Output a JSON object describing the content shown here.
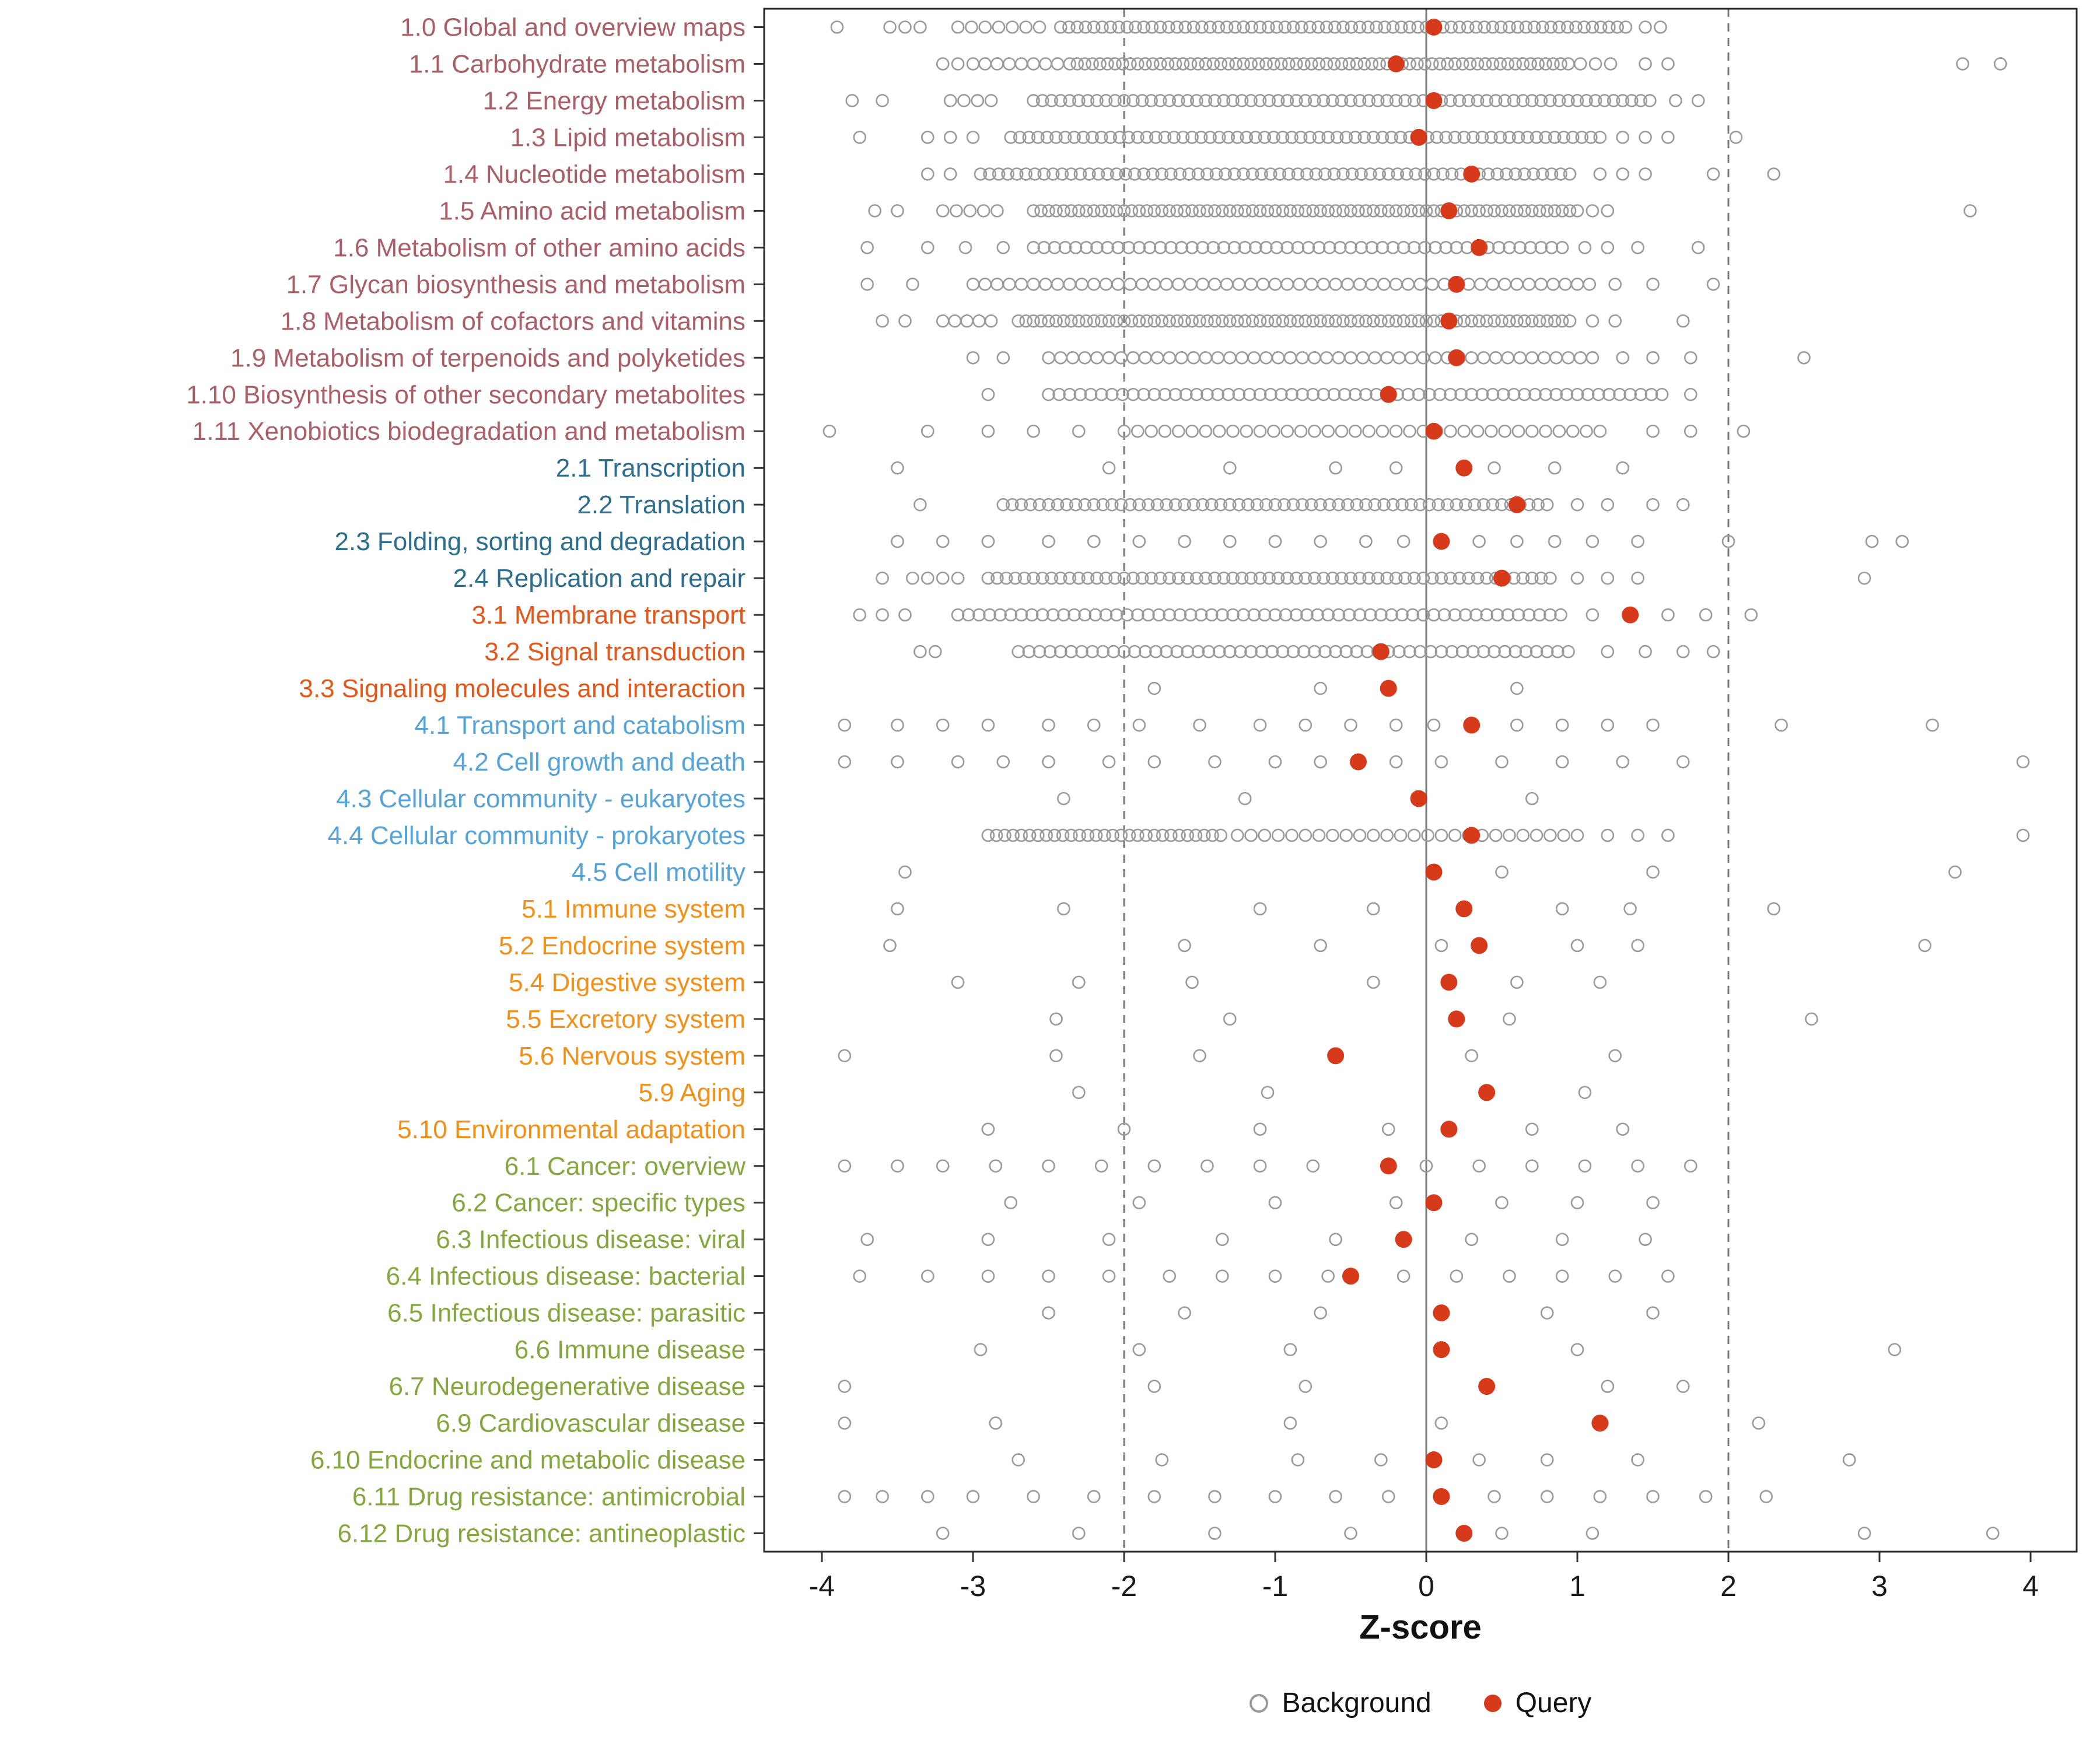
{
  "chart_data": {
    "type": "scatter",
    "subtype": "strip-dot-plot",
    "title": "",
    "xlabel": "Z-score",
    "ylabel": "",
    "x_ticks": [
      -4,
      -3,
      -2,
      -1,
      0,
      1,
      2,
      3,
      4
    ],
    "xlim": [
      -4.38,
      4.3
    ],
    "ref_lines_dashed": [
      -2,
      2
    ],
    "ref_line_solid": 0,
    "grid": false,
    "legend_position": "bottom",
    "series_names": [
      "Background",
      "Query"
    ],
    "background_run_format": "entries that are [from,to,step] arrays expand to an inclusive range of points",
    "group_colors": {
      "1": "#AA5F66",
      "2": "#2D6E8E",
      "3": "#E4571B",
      "4": "#55A3D8",
      "5": "#F39019",
      "6": "#84A83F"
    },
    "categories": [
      {
        "label": "1.0 Global and overview maps",
        "group": "1",
        "query": 0.05,
        "background": [
          -3.9,
          -3.55,
          -3.45,
          -3.35,
          [
            -3.1,
            -2.5,
            0.09
          ],
          [
            -2.42,
            1.36,
            0.055
          ],
          1.45,
          1.55
        ]
      },
      {
        "label": "1.1 Carbohydrate metabolism",
        "group": "1",
        "query": -0.2,
        "background": [
          -3.2,
          -3.1,
          [
            -3.0,
            -2.42,
            0.08
          ],
          [
            -2.36,
            0.96,
            0.05
          ],
          [
            1.02,
            1.22,
            0.1
          ],
          1.45,
          1.6,
          3.55,
          3.8
        ]
      },
      {
        "label": "1.2 Energy metabolism",
        "group": "1",
        "query": 0.05,
        "background": [
          -3.8,
          -3.6,
          [
            -3.15,
            -2.8,
            0.09
          ],
          [
            -2.6,
            1.5,
            0.06
          ],
          1.65,
          1.8
        ]
      },
      {
        "label": "1.3 Lipid metabolism",
        "group": "1",
        "query": -0.05,
        "background": [
          -3.75,
          -3.3,
          -3.15,
          -3.0,
          [
            -2.75,
            1.15,
            0.06
          ],
          1.3,
          1.45,
          1.6,
          2.05
        ]
      },
      {
        "label": "1.4 Nucleotide metabolism",
        "group": "1",
        "query": 0.3,
        "background": [
          -3.3,
          -3.15,
          [
            -2.95,
            1.0,
            0.06
          ],
          1.15,
          1.3,
          1.45,
          1.9,
          2.3
        ]
      },
      {
        "label": "1.5 Amino acid metabolism",
        "group": "1",
        "query": 0.15,
        "background": [
          -3.65,
          -3.5,
          [
            -3.2,
            -2.76,
            0.09
          ],
          [
            -2.6,
            1.0,
            0.05
          ],
          1.1,
          1.2,
          3.6
        ]
      },
      {
        "label": "1.6 Metabolism of other amino acids",
        "group": "1",
        "query": 0.35,
        "background": [
          -3.7,
          -3.3,
          -3.05,
          -2.8,
          [
            -2.6,
            0.9,
            0.07
          ],
          1.05,
          1.2,
          1.4,
          1.8
        ]
      },
      {
        "label": "1.7 Glycan biosynthesis and metabolism",
        "group": "1",
        "query": 0.2,
        "background": [
          -3.7,
          -3.4,
          [
            -3.0,
            1.1,
            0.08
          ],
          1.25,
          1.5,
          1.9
        ]
      },
      {
        "label": "1.8 Metabolism of cofactors and vitamins",
        "group": "1",
        "query": 0.15,
        "background": [
          -3.6,
          -3.45,
          [
            -3.2,
            -2.84,
            0.08
          ],
          [
            -2.7,
            0.95,
            0.05
          ],
          1.1,
          1.25,
          1.7
        ]
      },
      {
        "label": "1.9 Metabolism of terpenoids and polyketides",
        "group": "1",
        "query": 0.2,
        "background": [
          -3.0,
          -2.8,
          [
            -2.5,
            1.1,
            0.08
          ],
          1.3,
          1.5,
          1.75,
          2.5
        ]
      },
      {
        "label": "1.10 Biosynthesis of other secondary metabolites",
        "group": "1",
        "query": -0.25,
        "background": [
          -2.9,
          [
            -2.5,
            1.6,
            0.07
          ],
          1.75
        ]
      },
      {
        "label": "1.11 Xenobiotics biodegradation and metabolism",
        "group": "1",
        "query": 0.05,
        "background": [
          -3.95,
          -3.3,
          -2.9,
          -2.6,
          -2.3,
          [
            -2.0,
            1.2,
            0.09
          ],
          1.5,
          1.75,
          2.1
        ]
      },
      {
        "label": "2.1 Transcription",
        "group": "2",
        "query": 0.25,
        "background": [
          -3.5,
          -2.1,
          -1.3,
          -0.6,
          -0.2,
          0.45,
          0.85,
          1.3
        ]
      },
      {
        "label": "2.2 Translation",
        "group": "2",
        "query": 0.6,
        "background": [
          -3.35,
          [
            -2.8,
            0.85,
            0.06
          ],
          1.0,
          1.2,
          1.5,
          1.7
        ]
      },
      {
        "label": "2.3 Folding, sorting and degradation",
        "group": "2",
        "query": 0.1,
        "background": [
          -3.5,
          -3.2,
          -2.9,
          -2.5,
          -2.2,
          -1.9,
          -1.6,
          -1.3,
          -1.0,
          -0.7,
          -0.4,
          -0.15,
          0.35,
          0.6,
          0.85,
          1.1,
          1.4,
          2.0,
          2.95,
          3.15
        ]
      },
      {
        "label": "2.4 Replication and repair",
        "group": "2",
        "query": 0.5,
        "background": [
          -3.6,
          [
            -3.4,
            -3.1,
            0.1
          ],
          [
            -2.9,
            0.85,
            0.06
          ],
          1.0,
          1.2,
          1.4,
          2.9
        ]
      },
      {
        "label": "3.1 Membrane transport",
        "group": "3",
        "query": 1.35,
        "background": [
          -3.75,
          -3.6,
          -3.45,
          [
            -3.1,
            0.9,
            0.07
          ],
          1.1,
          1.6,
          1.85,
          2.15
        ]
      },
      {
        "label": "3.2 Signal transduction",
        "group": "3",
        "query": -0.3,
        "background": [
          -3.35,
          -3.25,
          [
            -2.7,
            1.0,
            0.07
          ],
          1.2,
          1.45,
          1.7,
          1.9
        ]
      },
      {
        "label": "3.3 Signaling molecules and interaction",
        "group": "3",
        "query": -0.25,
        "background": [
          -1.8,
          -0.7,
          0.6
        ]
      },
      {
        "label": "4.1 Transport and catabolism",
        "group": "4",
        "query": 0.3,
        "background": [
          -3.85,
          -3.5,
          -3.2,
          -2.9,
          -2.5,
          -2.2,
          -1.9,
          -1.5,
          -1.1,
          -0.8,
          -0.5,
          -0.2,
          0.05,
          0.6,
          0.9,
          1.2,
          1.5,
          2.35,
          3.35
        ]
      },
      {
        "label": "4.2 Cell growth and death",
        "group": "4",
        "query": -0.45,
        "background": [
          -3.85,
          -3.5,
          -3.1,
          -2.8,
          -2.5,
          -2.1,
          -1.8,
          -1.4,
          -1.0,
          -0.7,
          -0.2,
          0.1,
          0.5,
          0.9,
          1.3,
          1.7,
          3.95
        ]
      },
      {
        "label": "4.3 Cellular community - eukaryotes",
        "group": "4",
        "query": -0.05,
        "background": [
          -2.4,
          -1.2,
          0.7
        ]
      },
      {
        "label": "4.4 Cellular community - prokaryotes",
        "group": "4",
        "query": 0.3,
        "background": [
          [
            -2.9,
            -1.35,
            0.055
          ],
          [
            -1.25,
            1.0,
            0.09
          ],
          1.2,
          1.4,
          1.6,
          3.95
        ]
      },
      {
        "label": "4.5 Cell motility",
        "group": "4",
        "query": 0.05,
        "background": [
          -3.45,
          0.5,
          1.5,
          3.5
        ]
      },
      {
        "label": "5.1 Immune system",
        "group": "5",
        "query": 0.25,
        "background": [
          -3.5,
          -2.4,
          -1.1,
          -0.35,
          0.9,
          1.35,
          2.3
        ]
      },
      {
        "label": "5.2 Endocrine system",
        "group": "5",
        "query": 0.35,
        "background": [
          -3.55,
          -1.6,
          -0.7,
          0.1,
          1.0,
          1.4,
          3.3
        ]
      },
      {
        "label": "5.4 Digestive system",
        "group": "5",
        "query": 0.15,
        "background": [
          -3.1,
          -2.3,
          -1.55,
          -0.35,
          0.6,
          1.15
        ]
      },
      {
        "label": "5.5 Excretory system",
        "group": "5",
        "query": 0.2,
        "background": [
          -2.45,
          -1.3,
          0.55,
          2.55
        ]
      },
      {
        "label": "5.6 Nervous system",
        "group": "5",
        "query": -0.6,
        "background": [
          -3.85,
          -2.45,
          -1.5,
          0.3,
          1.25
        ]
      },
      {
        "label": "5.9 Aging",
        "group": "5",
        "query": 0.4,
        "background": [
          -2.3,
          -1.05,
          1.05
        ]
      },
      {
        "label": "5.10 Environmental adaptation",
        "group": "5",
        "query": 0.15,
        "background": [
          -2.9,
          -2.0,
          -1.1,
          -0.25,
          0.7,
          1.3
        ]
      },
      {
        "label": "6.1 Cancer: overview",
        "group": "6",
        "query": -0.25,
        "background": [
          -3.85,
          -3.5,
          -3.2,
          -2.85,
          -2.5,
          -2.15,
          -1.8,
          -1.45,
          -1.1,
          -0.75,
          0.0,
          0.35,
          0.7,
          1.05,
          1.4,
          1.75
        ]
      },
      {
        "label": "6.2 Cancer: specific types",
        "group": "6",
        "query": 0.05,
        "background": [
          -2.75,
          -1.9,
          -1.0,
          -0.2,
          0.5,
          1.0,
          1.5
        ]
      },
      {
        "label": "6.3 Infectious disease: viral",
        "group": "6",
        "query": -0.15,
        "background": [
          -3.7,
          -2.9,
          -2.1,
          -1.35,
          -0.6,
          0.3,
          0.9,
          1.45
        ]
      },
      {
        "label": "6.4 Infectious disease: bacterial",
        "group": "6",
        "query": -0.5,
        "background": [
          -3.75,
          -3.3,
          -2.9,
          -2.5,
          -2.1,
          -1.7,
          -1.35,
          -1.0,
          -0.65,
          -0.15,
          0.2,
          0.55,
          0.9,
          1.25,
          1.6
        ]
      },
      {
        "label": "6.5 Infectious disease: parasitic",
        "group": "6",
        "query": 0.1,
        "background": [
          -2.5,
          -1.6,
          -0.7,
          0.8,
          1.5
        ]
      },
      {
        "label": "6.6 Immune disease",
        "group": "6",
        "query": 0.1,
        "background": [
          -2.95,
          -1.9,
          -0.9,
          1.0,
          3.1
        ]
      },
      {
        "label": "6.7 Neurodegenerative disease",
        "group": "6",
        "query": 0.4,
        "background": [
          -3.85,
          -1.8,
          -0.8,
          1.2,
          1.7
        ]
      },
      {
        "label": "6.9 Cardiovascular disease",
        "group": "6",
        "query": 1.15,
        "background": [
          -3.85,
          -2.85,
          -0.9,
          0.1,
          2.2
        ]
      },
      {
        "label": "6.10 Endocrine and metabolic disease",
        "group": "6",
        "query": 0.05,
        "background": [
          -2.7,
          -1.75,
          -0.85,
          -0.3,
          0.35,
          0.8,
          1.4,
          2.8
        ]
      },
      {
        "label": "6.11 Drug resistance: antimicrobial",
        "group": "6",
        "query": 0.1,
        "background": [
          -3.85,
          -3.6,
          -3.3,
          -3.0,
          -2.6,
          -2.2,
          -1.8,
          -1.4,
          -1.0,
          -0.6,
          -0.25,
          0.45,
          0.8,
          1.15,
          1.5,
          1.85,
          2.25
        ]
      },
      {
        "label": "6.12 Drug resistance: antineoplastic",
        "group": "6",
        "query": 0.25,
        "background": [
          -3.2,
          -2.3,
          -1.4,
          -0.5,
          0.5,
          1.1,
          2.9,
          3.75
        ]
      }
    ]
  },
  "legend": {
    "background_label": "Background",
    "query_label": "Query"
  },
  "colors": {
    "query": "#D63A1A",
    "background_stroke": "#9A9A9A",
    "panel_border": "#2B2B2B",
    "ref_line": "#7A7A7A",
    "zero_line": "#7A7A7A",
    "tick": "#333333",
    "axis_text": "#1A1A1A"
  }
}
